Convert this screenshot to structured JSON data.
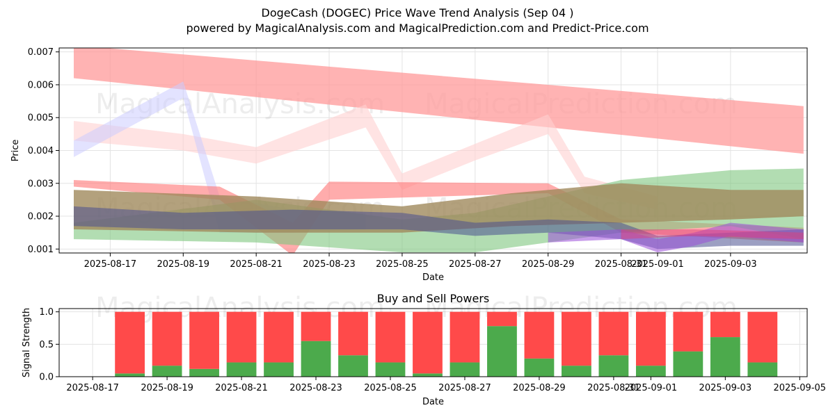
{
  "header": {
    "title": "DogeCash (DOGEC) Price Wave Trend Analysis (Sep 04 )",
    "subtitle": "powered by MagicalAnalysis.com and MagicalPrediction.com and Predict-Price.com"
  },
  "watermarks": {
    "left": "MagicalAnalysis.com",
    "right": "MagicalPrediction.com"
  },
  "chart_data": [
    {
      "type": "area",
      "xlabel": "Date",
      "ylabel": "Price",
      "x_ticks": [
        "2025-08-17",
        "2025-08-19",
        "2025-08-21",
        "2025-08-23",
        "2025-08-25",
        "2025-08-27",
        "2025-08-29",
        "2025-08-31",
        "2025-09-01",
        "2025-09-03"
      ],
      "y_ticks": [
        "0.001",
        "0.002",
        "0.003",
        "0.004",
        "0.005",
        "0.006",
        "0.007"
      ],
      "xlim": [
        "2025-08-15.6",
        "2025-09-05.1"
      ],
      "ylim": [
        0.00088,
        0.00712
      ],
      "grid": true,
      "bands": [
        {
          "color": "#ff9a9a",
          "opacity": 0.75,
          "x": [
            "2025-08-16",
            "2025-09-05"
          ],
          "upper": [
            0.0072,
            0.00535
          ],
          "lower": [
            0.0062,
            0.0039
          ]
        },
        {
          "color": "#ffd0d0",
          "opacity": 0.6,
          "x": [
            "2025-08-16",
            "2025-08-19",
            "2025-08-21",
            "2025-08-24",
            "2025-08-25",
            "2025-08-27",
            "2025-08-29",
            "2025-08-30",
            "2025-09-01"
          ],
          "upper": [
            0.0049,
            0.0045,
            0.0041,
            0.0054,
            0.0033,
            0.0042,
            0.0051,
            0.0032,
            0.0026
          ],
          "lower": [
            0.0043,
            0.004,
            0.0036,
            0.0047,
            0.0028,
            0.0037,
            0.0045,
            0.0027,
            0.0022
          ]
        },
        {
          "color": "#ccccff",
          "opacity": 0.55,
          "x": [
            "2025-08-16",
            "2025-08-19",
            "2025-08-20",
            "2025-08-22",
            "2025-08-24"
          ],
          "upper": [
            0.0043,
            0.0061,
            0.0026,
            0.0022,
            0.0021
          ],
          "lower": [
            0.0038,
            0.0056,
            0.0015,
            0.0015,
            0.0016
          ]
        },
        {
          "color": "#ff8080",
          "opacity": 0.65,
          "x": [
            "2025-08-16",
            "2025-08-20",
            "2025-08-22",
            "2025-08-23",
            "2025-08-29",
            "2025-08-31",
            "2025-09-05"
          ],
          "upper": [
            0.0031,
            0.0029,
            0.0018,
            0.00305,
            0.003,
            0.0019,
            0.00165
          ],
          "lower": [
            0.0029,
            0.0025,
            0.0008,
            0.0025,
            0.0027,
            0.0015,
            0.0012
          ]
        },
        {
          "color": "#7fc77f",
          "opacity": 0.6,
          "x": [
            "2025-08-16",
            "2025-08-21",
            "2025-08-25",
            "2025-08-27",
            "2025-08-31",
            "2025-09-03",
            "2025-09-05"
          ],
          "upper": [
            0.0018,
            0.0025,
            0.0019,
            0.0021,
            0.0031,
            0.0034,
            0.00345
          ],
          "lower": [
            0.0013,
            0.0012,
            0.0009,
            0.0009,
            0.0015,
            0.0017,
            0.0013
          ]
        },
        {
          "color": "#a08a5c",
          "opacity": 0.8,
          "x": [
            "2025-08-16",
            "2025-08-21",
            "2025-08-25",
            "2025-08-28",
            "2025-08-31",
            "2025-09-03",
            "2025-09-05"
          ],
          "upper": [
            0.0028,
            0.0026,
            0.0023,
            0.0027,
            0.003,
            0.0028,
            0.0028
          ],
          "lower": [
            0.0016,
            0.0015,
            0.0015,
            0.0017,
            0.0018,
            0.0019,
            0.002
          ]
        },
        {
          "color": "#4a5090",
          "opacity": 0.55,
          "x": [
            "2025-08-16",
            "2025-08-19",
            "2025-08-22",
            "2025-08-25",
            "2025-08-27",
            "2025-08-29",
            "2025-08-31",
            "2025-09-01",
            "2025-09-03",
            "2025-09-05"
          ],
          "upper": [
            0.0023,
            0.0021,
            0.0022,
            0.0021,
            0.0018,
            0.0019,
            0.0018,
            0.0014,
            0.0015,
            0.0016
          ],
          "lower": [
            0.0017,
            0.0016,
            0.0016,
            0.0016,
            0.0014,
            0.0015,
            0.0013,
            0.001,
            0.0011,
            0.0011
          ]
        },
        {
          "color": "#9b4fd8",
          "opacity": 0.55,
          "x": [
            "2025-08-29",
            "2025-08-31",
            "2025-09-01",
            "2025-09-02",
            "2025-09-03",
            "2025-09-05"
          ],
          "upper": [
            0.0015,
            0.0016,
            0.0013,
            0.0015,
            0.0018,
            0.0016
          ],
          "lower": [
            0.0012,
            0.0013,
            0.0009,
            0.0011,
            0.0014,
            0.0012
          ]
        },
        {
          "color": "#e0407a",
          "opacity": 0.5,
          "x": [
            "2025-08-31",
            "2025-09-02",
            "2025-09-05"
          ],
          "upper": [
            0.0016,
            0.0016,
            0.0015
          ],
          "lower": [
            0.0013,
            0.0014,
            0.0013
          ]
        }
      ]
    },
    {
      "type": "bar",
      "title": "Buy and Sell Powers",
      "xlabel": "Date",
      "ylabel": "Signal Strength",
      "x_ticks": [
        "2025-08-17",
        "2025-08-19",
        "2025-08-21",
        "2025-08-23",
        "2025-08-25",
        "2025-08-27",
        "2025-08-29",
        "2025-08-31",
        "2025-09-01",
        "2025-09-03",
        "2025-09-05"
      ],
      "y_ticks": [
        "0.0",
        "0.5",
        "1.0"
      ],
      "ylim": [
        0,
        1.05
      ],
      "grid": true,
      "categories": [
        "2025-08-18",
        "2025-08-19",
        "2025-08-20",
        "2025-08-21",
        "2025-08-22",
        "2025-08-23",
        "2025-08-24",
        "2025-08-25",
        "2025-08-26",
        "2025-08-27",
        "2025-08-28",
        "2025-08-29",
        "2025-08-30",
        "2025-08-31",
        "2025-09-01",
        "2025-09-02",
        "2025-09-03",
        "2025-09-04"
      ],
      "series": [
        {
          "color": "#4caa4c",
          "values": [
            0.05,
            0.17,
            0.12,
            0.22,
            0.22,
            0.55,
            0.33,
            0.22,
            0.05,
            0.22,
            0.78,
            0.28,
            0.17,
            0.33,
            0.17,
            0.39,
            0.61,
            0.22
          ]
        },
        {
          "color": "#ff4a4a",
          "values": [
            0.95,
            0.83,
            0.88,
            0.78,
            0.78,
            0.45,
            0.67,
            0.78,
            0.95,
            0.78,
            0.22,
            0.72,
            0.83,
            0.67,
            0.83,
            0.61,
            0.39,
            0.78
          ]
        }
      ]
    }
  ]
}
